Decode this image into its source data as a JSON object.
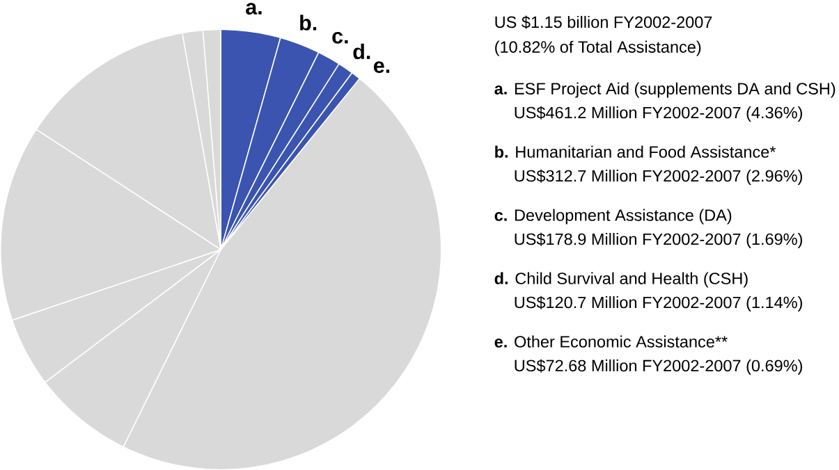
{
  "chart_data": {
    "type": "pie",
    "title": "US $1.15 billion FY2002-2007",
    "subtitle": "(10.82% of Total Assistance)",
    "categories": [
      "a.",
      "b.",
      "c.",
      "d.",
      "e.",
      null,
      null,
      null,
      null,
      null,
      null,
      null
    ],
    "values": [
      4.36,
      2.96,
      1.69,
      1.14,
      0.69,
      46.46,
      7.4,
      5.1,
      14.4,
      13.0,
      1.5,
      1.3
    ],
    "colors": [
      "#3b54b0",
      "#3b54b0",
      "#3b54b0",
      "#3b54b0",
      "#3b54b0",
      "#d9d9d9",
      "#d9d9d9",
      "#d9d9d9",
      "#d9d9d9",
      "#d9d9d9",
      "#d9d9d9",
      "#d9d9d9"
    ],
    "annotations": [
      "**a.** ESF Project Aid (supplements DA and CSH)",
      "US$461.2 Million FY2002-2007 (4.36%)",
      "**b.** Humanitarian and Food Assistance*",
      "US$312.7 Million FY2002-2007 (2.96%)",
      "**c.** Development Assistance (DA)",
      "US$178.9 Million FY2002-2007 (1.69%)",
      "**d.** Child Survival and Health (CSH)",
      "US$120.7 Million FY2002-2007 (1.14%)",
      "**e.** Other Economic Assistance**",
      "US$72.68 Million FY2002-2007 (0.69%)"
    ]
  }
}
